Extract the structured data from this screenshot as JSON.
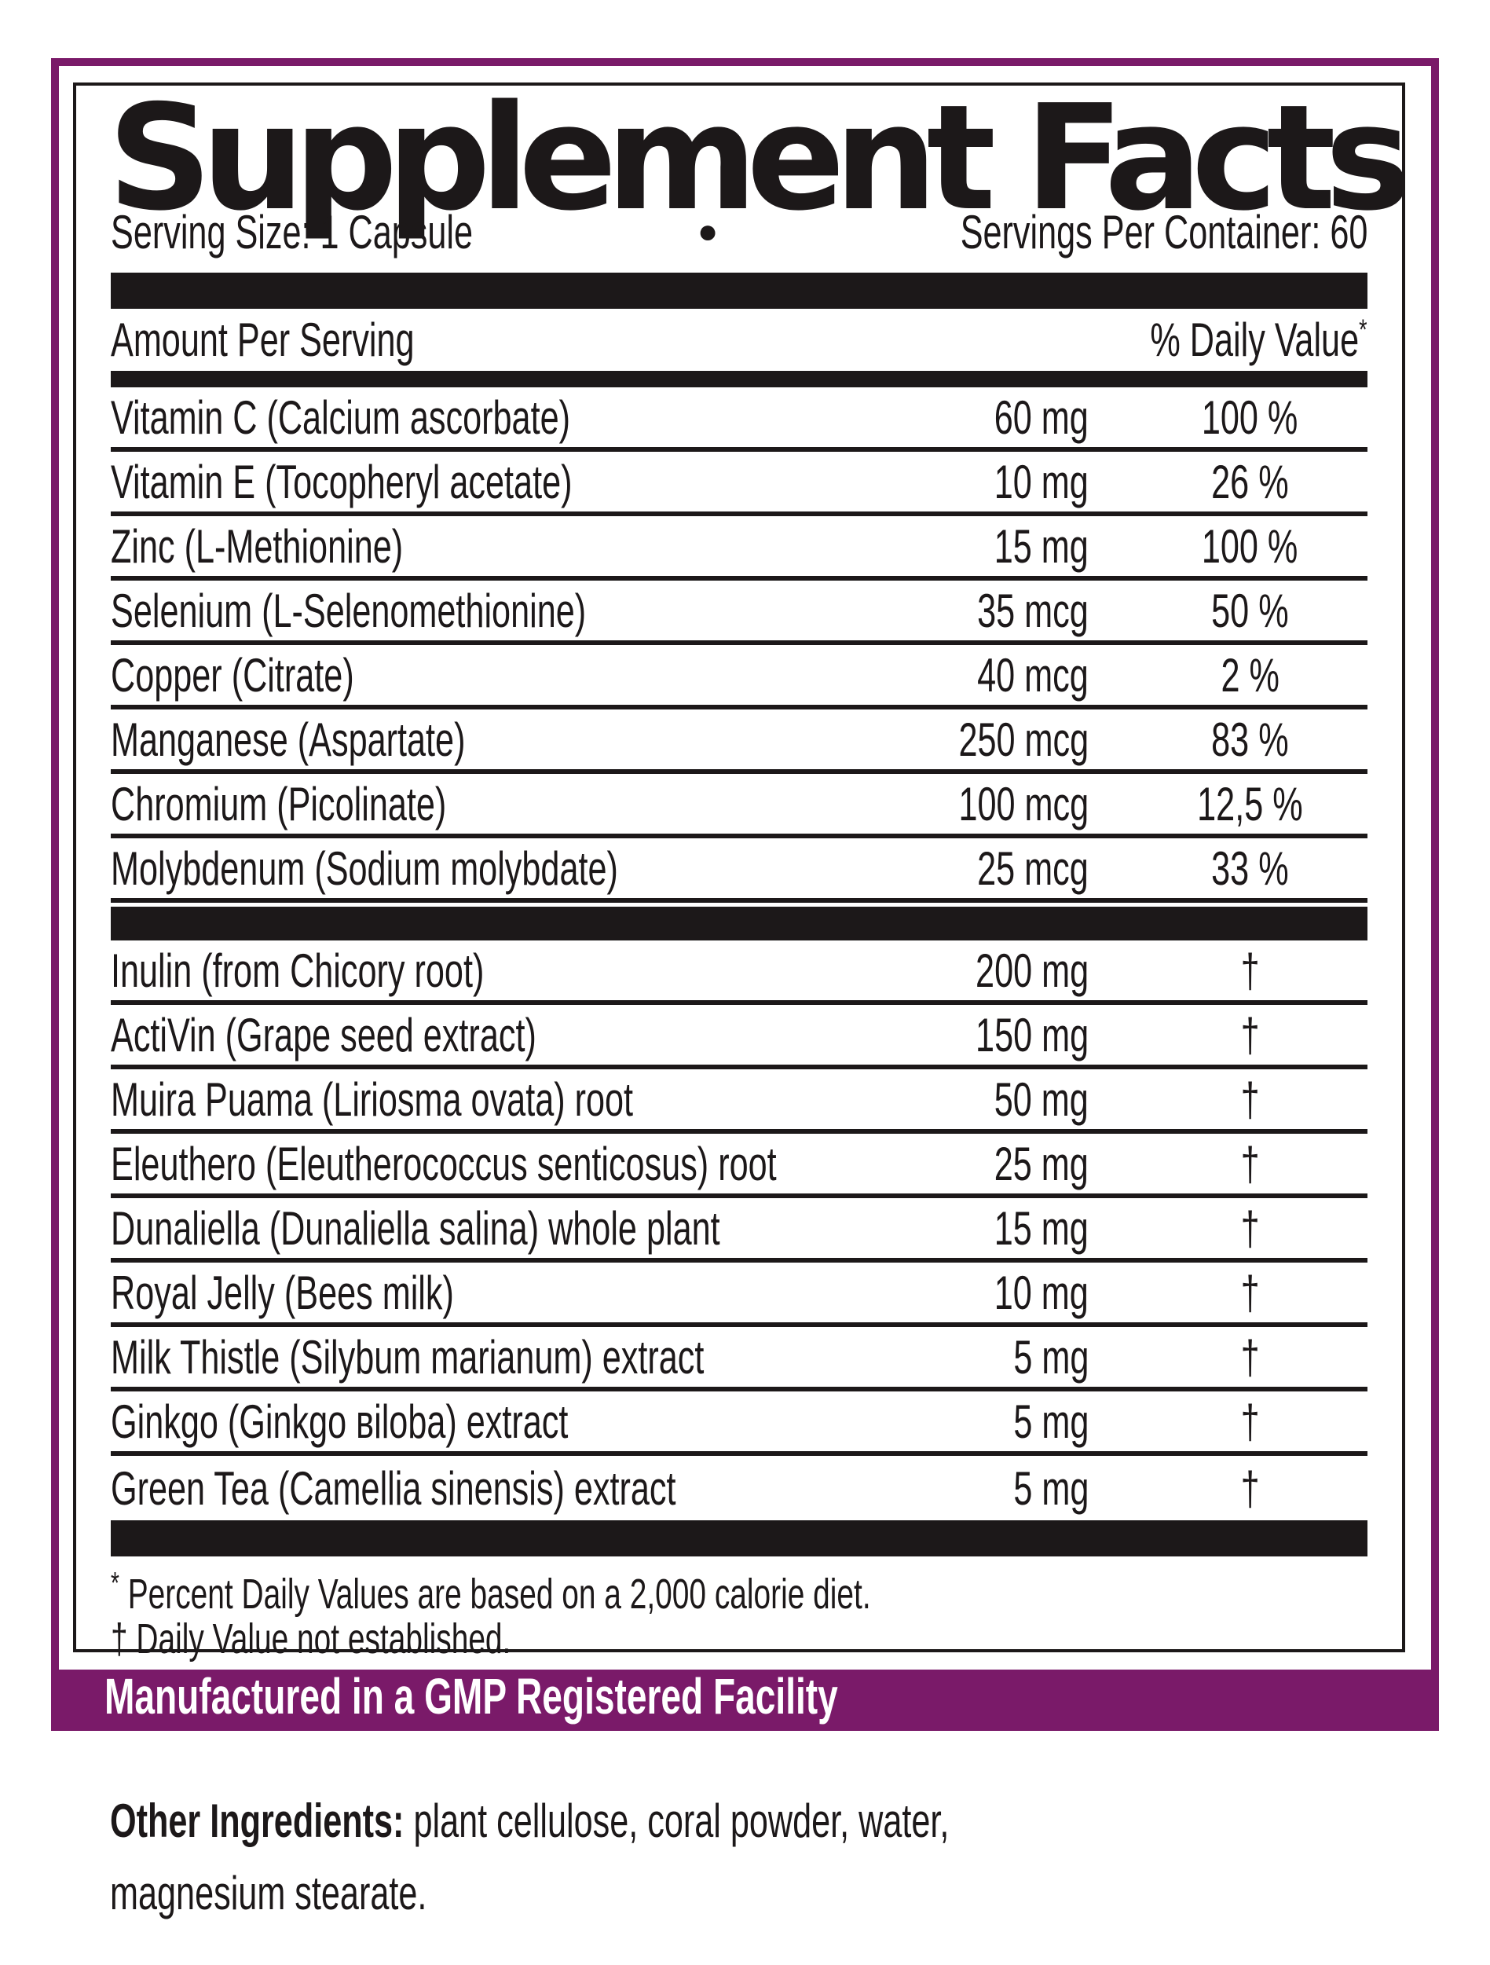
{
  "colors": {
    "accent": "#7A1A69",
    "ink": "#1C1819",
    "paper": "#FFFFFF"
  },
  "header": {
    "title": "Supplement Facts",
    "serving_size": "Serving Size: 1 Capsule",
    "bullet": "●",
    "servings_per_container": "Servings Per Container: 60"
  },
  "table": {
    "amount_header": "Amount Per Serving",
    "dv_header": "% Daily Value",
    "dv_header_mark": "*",
    "nutrients": [
      {
        "name": "Vitamin C (Calcium ascorbate)",
        "amount": "60 mg",
        "dv": "100 %"
      },
      {
        "name": "Vitamin E (Tocopheryl acetate)",
        "amount": "10 mg",
        "dv": "26 %"
      },
      {
        "name": "Zinc (L-Methionine)",
        "amount": "15 mg",
        "dv": "100 %"
      },
      {
        "name": "Selenium (L-Selenomethionine)",
        "amount": "35 mcg",
        "dv": "50 %"
      },
      {
        "name": "Copper (Citrate)",
        "amount": "40 mcg",
        "dv": "2 %"
      },
      {
        "name": "Manganese (Aspartate)",
        "amount": "250 mcg",
        "dv": "83 %"
      },
      {
        "name": "Chromium (Picolinate)",
        "amount": "100 mcg",
        "dv": "12,5 %"
      },
      {
        "name": "Molybdenum (Sodium molybdate)",
        "amount": "25 mcg",
        "dv": "33 %"
      }
    ],
    "botanicals": [
      {
        "name": "Inulin (from Chicory root)",
        "amount": "200 mg",
        "dv": "†"
      },
      {
        "name": "ActiVin (Grape seed extract)",
        "amount": "150 mg",
        "dv": "†"
      },
      {
        "name": "Muira Puama (Liriosma ovata) root",
        "amount": "50 mg",
        "dv": "†"
      },
      {
        "name": "Eleuthero (Eleutherococcus senticosus) root",
        "amount": "25 mg",
        "dv": "†"
      },
      {
        "name": "Dunaliella (Dunaliella salina) whole plant",
        "amount": "15 mg",
        "dv": "†"
      },
      {
        "name": "Royal Jelly (Bees milk)",
        "amount": "10 mg",
        "dv": "†"
      },
      {
        "name": "Milk Thistle (Silybum marianum) extract",
        "amount": "5 mg",
        "dv": "†"
      },
      {
        "name": "Ginkgo (Ginkgo вiloba) extract",
        "amount": "5 mg",
        "dv": "†"
      },
      {
        "name": "Green Tea (Camellia sinensis) extract",
        "amount": "5 mg",
        "dv": "†"
      }
    ]
  },
  "footnotes": {
    "dv_mark": "*",
    "dv_text": " Percent Daily Values are based on a 2,000 calorie diet.",
    "ne_mark": "†",
    "ne_text": " Daily Value not established."
  },
  "banner": {
    "text": "Manufactured in a GMP Registered Facility"
  },
  "other_ingredients": {
    "label": "Other Ingredients:",
    "text": " plant cellulose, coral powder, water, magnesium stearate."
  }
}
